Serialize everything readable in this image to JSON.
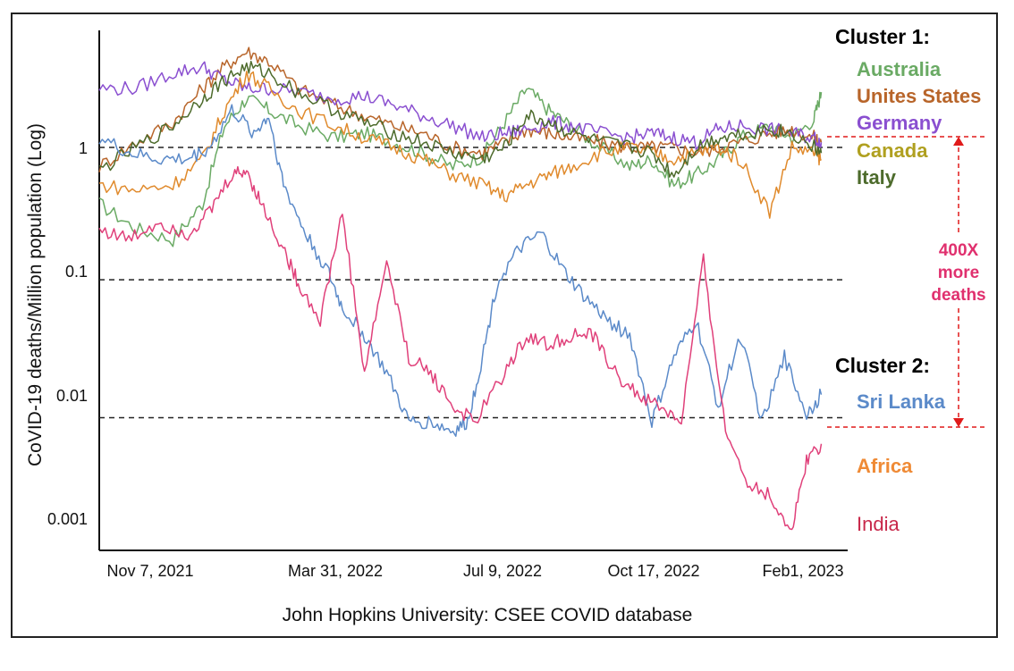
{
  "chart_data": {
    "type": "line",
    "title": "",
    "xlabel": "John Hopkins University: CSEE COVID database",
    "ylabel": "CoVID-19 deaths/Million population (Log)",
    "yscale": "log",
    "ylim": [
      0.0006,
      7.0
    ],
    "y_ticks": [
      {
        "value": 1,
        "label": "1"
      },
      {
        "value": 0.1,
        "label": "0.1"
      },
      {
        "value": 0.01,
        "label": "0.01"
      },
      {
        "value": 0.001,
        "label": "0.001"
      }
    ],
    "x_domain": [
      0,
      100
    ],
    "x_ticks": [
      {
        "x": 6,
        "label": "Nov 7, 2021"
      },
      {
        "x": 32,
        "label": "Mar 31, 2022"
      },
      {
        "x": 52,
        "label": "Jul 9, 2022"
      },
      {
        "x": 73,
        "label": "Oct 17, 2022"
      },
      {
        "x": 93,
        "label": "Feb1, 2023"
      }
    ],
    "reference_lines": [
      1.0,
      0.085,
      0.0065
    ],
    "clusters": [
      {
        "heading": "Cluster 1:",
        "members": [
          "Australia",
          "Unites States",
          "Germany",
          "Canada",
          "Italy"
        ]
      },
      {
        "heading": "Cluster 2:",
        "members": [
          "Sri Lanka",
          "Africa",
          "India"
        ]
      }
    ],
    "annotation": {
      "lines": [
        "400X",
        "more",
        "deaths"
      ],
      "from": 1.2,
      "to": 0.0065
    },
    "series": [
      {
        "name": "Australia",
        "color": "#6aaa64",
        "legend_weight": "bold",
        "x": [
          0,
          5,
          10,
          14,
          17,
          20,
          23,
          27,
          32,
          36,
          40,
          44,
          48,
          52,
          55,
          58,
          61,
          64,
          68,
          72,
          75,
          78,
          81,
          84,
          87,
          91,
          94,
          97,
          98
        ],
        "values": [
          0.35,
          0.22,
          0.18,
          0.35,
          1.5,
          2.5,
          2.0,
          1.5,
          1.2,
          1.3,
          1.1,
          0.9,
          0.7,
          0.85,
          1.6,
          3.0,
          2.0,
          1.5,
          1.0,
          0.7,
          0.8,
          0.5,
          0.6,
          0.8,
          1.2,
          1.5,
          1.2,
          1.7,
          2.8
        ]
      },
      {
        "name": "Unites States",
        "color": "#b8652a",
        "legend_weight": "bold",
        "x": [
          0,
          5,
          10,
          14,
          17,
          20,
          23,
          27,
          32,
          36,
          40,
          44,
          48,
          52,
          55,
          58,
          61,
          64,
          68,
          72,
          75,
          78,
          81,
          84,
          87,
          91,
          94,
          97,
          98
        ],
        "values": [
          0.7,
          1.1,
          1.6,
          3.0,
          4.5,
          6.0,
          5.0,
          3.0,
          2.2,
          1.8,
          1.5,
          1.3,
          1.0,
          0.9,
          1.1,
          1.4,
          1.3,
          1.2,
          1.1,
          1.0,
          1.0,
          1.0,
          0.9,
          1.0,
          1.1,
          1.3,
          1.4,
          1.2,
          1.1
        ]
      },
      {
        "name": "Germany",
        "color": "#8a4fd0",
        "legend_weight": "bold",
        "x": [
          0,
          5,
          10,
          14,
          17,
          20,
          23,
          27,
          32,
          36,
          40,
          44,
          48,
          52,
          55,
          58,
          61,
          64,
          68,
          72,
          75,
          78,
          81,
          84,
          87,
          91,
          94,
          97,
          98
        ],
        "values": [
          3.0,
          3.0,
          4.0,
          4.5,
          3.5,
          3.0,
          3.0,
          2.8,
          2.5,
          2.6,
          2.2,
          1.8,
          1.5,
          1.2,
          1.3,
          1.4,
          1.6,
          1.5,
          1.3,
          1.2,
          1.3,
          1.2,
          1.1,
          1.4,
          1.5,
          1.4,
          1.3,
          1.2,
          1.1
        ]
      },
      {
        "name": "Canada",
        "color": "#e08a2c",
        "legend_weight": "bold",
        "x": [
          0,
          5,
          10,
          14,
          17,
          20,
          23,
          27,
          32,
          36,
          40,
          44,
          48,
          52,
          55,
          58,
          61,
          64,
          68,
          72,
          75,
          78,
          81,
          84,
          87,
          91,
          94,
          97,
          98
        ],
        "values": [
          0.5,
          0.45,
          0.5,
          0.8,
          2.0,
          4.0,
          3.0,
          2.0,
          1.5,
          1.2,
          1.0,
          0.8,
          0.6,
          0.5,
          0.4,
          0.5,
          0.6,
          0.7,
          0.9,
          1.0,
          0.9,
          0.8,
          0.9,
          1.0,
          0.8,
          0.3,
          1.0,
          0.9,
          0.8
        ]
      },
      {
        "name": "Italy",
        "color": "#4d6b2c",
        "legend_weight": "bold",
        "x": [
          0,
          5,
          10,
          14,
          17,
          20,
          23,
          27,
          32,
          36,
          40,
          44,
          48,
          52,
          55,
          58,
          61,
          64,
          68,
          72,
          75,
          78,
          81,
          84,
          87,
          91,
          94,
          97,
          98
        ],
        "values": [
          0.65,
          1.0,
          1.5,
          2.5,
          3.5,
          4.5,
          4.0,
          2.8,
          2.0,
          1.6,
          1.3,
          1.1,
          0.9,
          0.8,
          1.0,
          1.8,
          1.6,
          1.3,
          1.1,
          1.0,
          0.9,
          0.6,
          1.0,
          1.2,
          1.3,
          1.4,
          1.3,
          1.0,
          0.9
        ]
      },
      {
        "name": "Sri Lanka",
        "color": "#5b8ac9",
        "legend_weight": "bold",
        "x": [
          0,
          4,
          8,
          12,
          15,
          18,
          21,
          23,
          25,
          28,
          31,
          33,
          36,
          39,
          42,
          45,
          48,
          50,
          52,
          54,
          57,
          60,
          63,
          66,
          69,
          72,
          75,
          78,
          81,
          84,
          87,
          90,
          93,
          96,
          98
        ],
        "values": [
          1.2,
          0.9,
          0.8,
          0.8,
          1.0,
          2.0,
          1.3,
          1.8,
          0.5,
          0.2,
          0.1,
          0.05,
          0.03,
          0.015,
          0.006,
          0.006,
          0.005,
          0.006,
          0.02,
          0.08,
          0.15,
          0.2,
          0.1,
          0.06,
          0.04,
          0.03,
          0.006,
          0.02,
          0.04,
          0.008,
          0.03,
          0.006,
          0.02,
          0.007,
          0.01
        ]
      },
      {
        "name": "Africa",
        "color": "#ef8a35",
        "legend_weight": "bold",
        "x": [],
        "values": []
      },
      {
        "name": "India",
        "color": "#e0407a",
        "legend_weight": "normal",
        "x": [
          0,
          4,
          8,
          12,
          15,
          18,
          20,
          22,
          25,
          27,
          30,
          33,
          36,
          39,
          42,
          45,
          48,
          51,
          55,
          58,
          61,
          64,
          67,
          70,
          73,
          76,
          79,
          82,
          85,
          88,
          91,
          94,
          96,
          98
        ],
        "values": [
          0.22,
          0.18,
          0.25,
          0.2,
          0.3,
          0.6,
          0.65,
          0.35,
          0.15,
          0.08,
          0.04,
          0.3,
          0.015,
          0.12,
          0.02,
          0.015,
          0.008,
          0.006,
          0.015,
          0.03,
          0.025,
          0.03,
          0.03,
          0.015,
          0.01,
          0.008,
          0.006,
          0.12,
          0.005,
          0.002,
          0.0015,
          0.0008,
          0.003,
          0.004
        ]
      }
    ]
  }
}
